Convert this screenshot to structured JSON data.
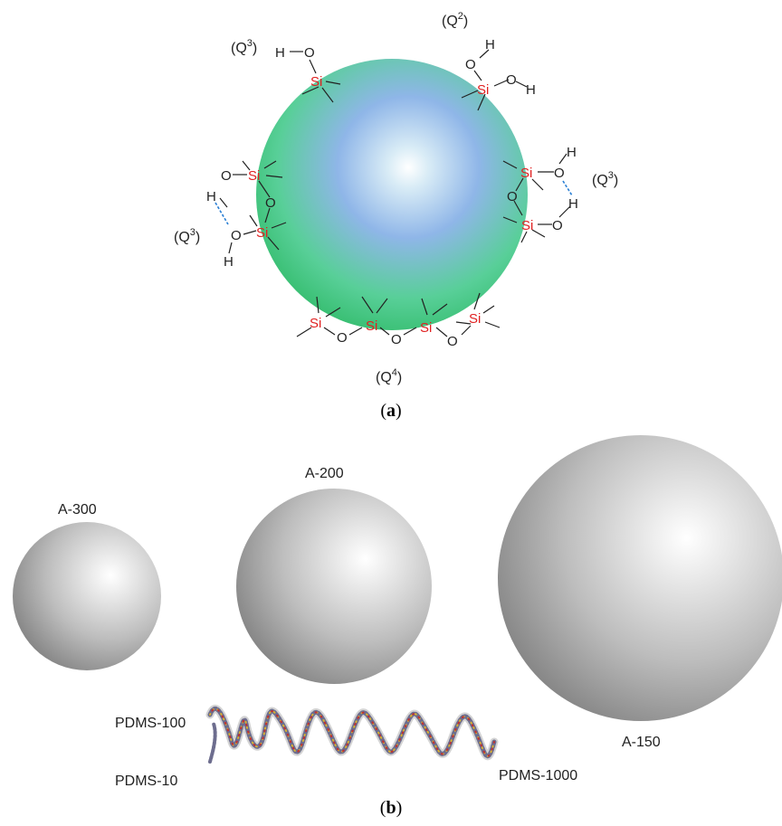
{
  "panel_a": {
    "caption_open": "(",
    "caption_letter": "a",
    "caption_close": ")",
    "atoms": {
      "silicon": "Si",
      "oxygen": "O",
      "hydrogen": "H"
    },
    "labels": [
      {
        "id": "q3-top-left",
        "base": "(Q",
        "sup": "3",
        "close": ")"
      },
      {
        "id": "q2-top-right",
        "base": "(Q",
        "sup": "2",
        "close": ")"
      },
      {
        "id": "q3-right",
        "base": "(Q",
        "sup": "3",
        "close": ")"
      },
      {
        "id": "q3-left",
        "base": "(Q",
        "sup": "3",
        "close": ")"
      },
      {
        "id": "q4-bottom",
        "base": "(Q",
        "sup": "4",
        "close": ")"
      }
    ],
    "colors": {
      "sphere_edge": "#3ec67a",
      "sphere_center": "#8fb6e8",
      "silicon": "#e02020",
      "hbond": "#2a7fd4"
    }
  },
  "panel_b": {
    "caption_open": "(",
    "caption_letter": "b",
    "caption_close": ")",
    "spheres": [
      {
        "label": "A-300"
      },
      {
        "label": "A-200"
      },
      {
        "label": "A-150"
      }
    ],
    "polymers": [
      {
        "label": "PDMS-100"
      },
      {
        "label": "PDMS-10"
      },
      {
        "label": "PDMS-1000"
      }
    ]
  }
}
